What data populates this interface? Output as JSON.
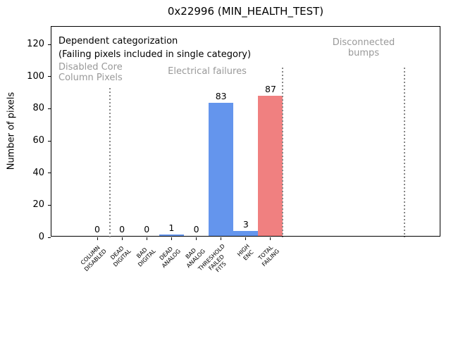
{
  "title": "0x22996 (MIN_HEALTH_TEST)",
  "ylabel": "Number of pixels",
  "annotations": {
    "note_line1": "Dependent categorization",
    "note_line2": "(Failing pixels included in single category)",
    "region_disabled_line1": "Disabled Core",
    "region_disabled_line2": "Column Pixels",
    "region_electrical": "Electrical failures",
    "region_bumps_line1": "Disconnected",
    "region_bumps_line2": "bumps"
  },
  "colors": {
    "bar_blue": "#6495ED",
    "bar_red": "#F08080",
    "annotation_gray": "#999999",
    "separator_gray": "#878787",
    "text_black": "#000000"
  },
  "chart_data": {
    "type": "bar",
    "title": "0x22996 (MIN_HEALTH_TEST)",
    "xlabel": "",
    "ylabel": "Number of pixels",
    "ylim": [
      0,
      131
    ],
    "yticks": [
      0,
      20,
      40,
      60,
      80,
      100,
      120
    ],
    "grid": false,
    "legend": false,
    "categories": [
      [
        "COLUMN",
        "DISABLED"
      ],
      [
        "DEAD",
        "DIGITAL"
      ],
      [
        "BAD",
        "DIGITAL"
      ],
      [
        "DEAD",
        "ANALOG"
      ],
      [
        "BAD",
        "ANALOG"
      ],
      [
        "THRESHOLD",
        "FAILED",
        "FITS"
      ],
      [
        "HIGH",
        "ENC"
      ],
      [
        "TOTAL",
        "FAILING"
      ]
    ],
    "values": [
      0,
      0,
      0,
      1,
      0,
      83,
      3,
      87
    ],
    "bar_colors": [
      "#6495ED",
      "#6495ED",
      "#6495ED",
      "#6495ED",
      "#6495ED",
      "#6495ED",
      "#6495ED",
      "#F08080"
    ],
    "value_labels_shown": true,
    "region_annotations": [
      {
        "label": "Disabled Core Column Pixels",
        "covers": [
          "COLUMN DISABLED"
        ]
      },
      {
        "label": "Electrical failures",
        "covers": [
          "DEAD DIGITAL",
          "BAD DIGITAL",
          "DEAD ANALOG",
          "BAD ANALOG",
          "THRESHOLD FAILED FITS",
          "HIGH ENC",
          "TOTAL FAILING"
        ]
      },
      {
        "label": "Disconnected bumps",
        "covers": []
      }
    ],
    "separators": [
      {
        "x": 83,
        "top": 87
      },
      {
        "x": 328,
        "top": 58
      },
      {
        "x": 501,
        "top": 58
      }
    ]
  }
}
